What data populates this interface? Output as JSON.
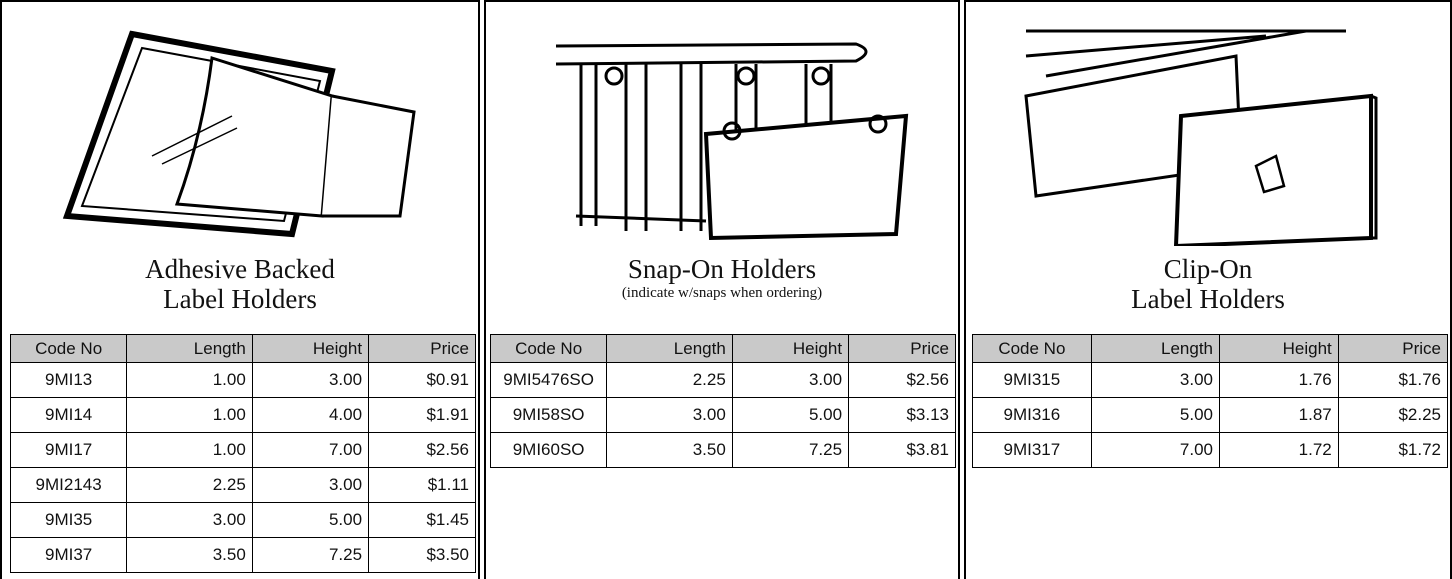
{
  "panels": [
    {
      "title_lines": [
        "Adhesive Backed",
        "Label Holders"
      ],
      "table": {
        "header": [
          "Code No",
          "Length",
          "Height",
          "Price"
        ],
        "rows": [
          [
            "9MI13",
            "1.00",
            "3.00",
            "$0.91"
          ],
          [
            "9MI14",
            "1.00",
            "4.00",
            "$1.91"
          ],
          [
            "9MI17",
            "1.00",
            "7.00",
            "$2.56"
          ],
          [
            "9MI2143",
            "2.25",
            "3.00",
            "$1.11"
          ],
          [
            "9MI35",
            "3.00",
            "5.00",
            "$1.45"
          ],
          [
            "9MI37",
            "3.50",
            "7.25",
            "$3.50"
          ]
        ]
      }
    },
    {
      "title_lines": [
        "Snap-On Holders"
      ],
      "note": "(indicate w/snaps when ordering)",
      "table": {
        "header": [
          "Code No",
          "Length",
          "Height",
          "Price"
        ],
        "rows": [
          [
            "9MI5476SO",
            "2.25",
            "3.00",
            "$2.56"
          ],
          [
            "9MI58SO",
            "3.00",
            "5.00",
            "$3.13"
          ],
          [
            "9MI60SO",
            "3.50",
            "7.25",
            "$3.81"
          ]
        ]
      }
    },
    {
      "title_lines": [
        "Clip-On",
        "Label Holders"
      ],
      "table": {
        "header": [
          "Code No",
          "Length",
          "Height",
          "Price"
        ],
        "rows": [
          [
            "9MI315",
            "3.00",
            "1.76",
            "$1.76"
          ],
          [
            "9MI316",
            "5.00",
            "1.87",
            "$2.25"
          ],
          [
            "9MI317",
            "7.00",
            "1.72",
            "$1.72"
          ]
        ]
      }
    }
  ]
}
